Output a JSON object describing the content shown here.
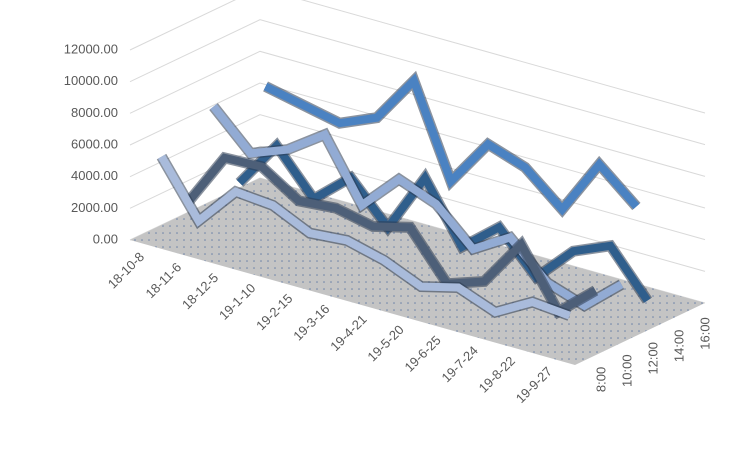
{
  "chart_data": {
    "type": "line3d",
    "categories": [
      "18-10-8",
      "18-11-6",
      "18-12-5",
      "19-1-10",
      "19-2-15",
      "19-3-16",
      "19-4-21",
      "19-5-20",
      "19-6-25",
      "19-7-24",
      "19-8-22",
      "19-9-27"
    ],
    "series": [
      {
        "name": "8:00",
        "color": "#a9bbdb",
        "values": [
          5200,
          1800,
          4300,
          4100,
          3000,
          3200,
          2600,
          1600,
          2200,
          1300,
          2600,
          2400
        ]
      },
      {
        "name": "10:00",
        "color": "#4d5f78",
        "values": [
          1500,
          5000,
          5100,
          3600,
          3800,
          3300,
          3900,
          1000,
          1800,
          4800,
          1200,
          3200
        ]
      },
      {
        "name": "12:00",
        "color": "#92abd4",
        "values": [
          6800,
          4500,
          5400,
          7000,
          3200,
          5500,
          4600,
          2400,
          3800,
          1600,
          800,
          2800
        ]
      },
      {
        "name": "14:00",
        "color": "#2f5e8c",
        "values": [
          1200,
          4200,
          1500,
          3500,
          1000,
          4800,
          1100,
          3000,
          500,
          2800,
          3800,
          1000
        ]
      },
      {
        "name": "16:00",
        "color": "#4a82c2",
        "values": [
          6500,
          6000,
          5500,
          6500,
          9500,
          3800,
          6800,
          6000,
          4000,
          7500,
          5500,
          null
        ]
      }
    ],
    "ylim": [
      0,
      12000
    ],
    "yticks": [
      {
        "value": 0,
        "label": "0.00"
      },
      {
        "value": 2000,
        "label": "2000.00"
      },
      {
        "value": 4000,
        "label": "4000.00"
      },
      {
        "value": 6000,
        "label": "6000.00"
      },
      {
        "value": 8000,
        "label": "8000.00"
      },
      {
        "value": 10000,
        "label": "10000.00"
      },
      {
        "value": 12000,
        "label": "12000.00"
      }
    ],
    "grid": true
  }
}
